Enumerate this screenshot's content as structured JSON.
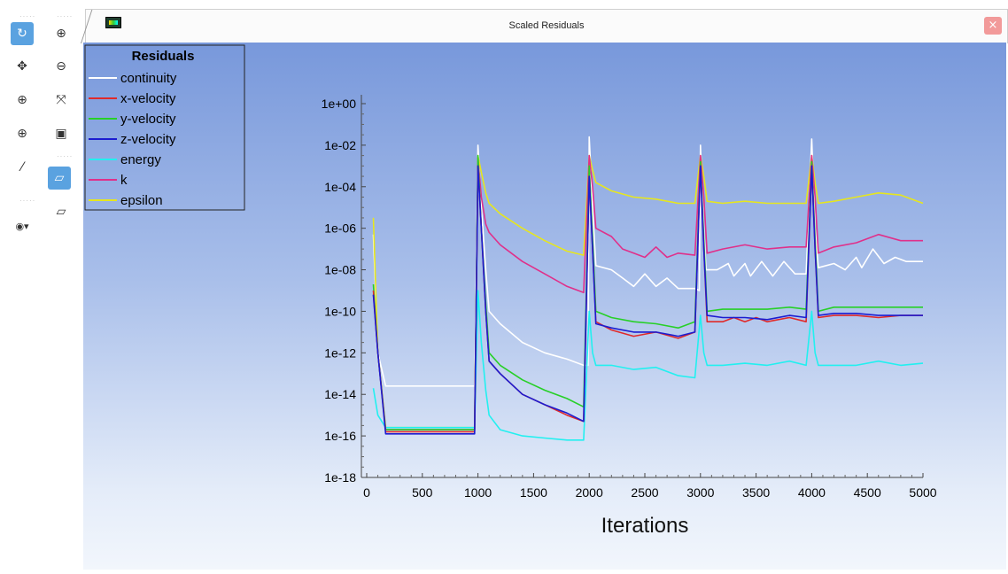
{
  "window": {
    "title": "Scaled Residuals",
    "close_label": "×"
  },
  "toolbar": {
    "items": [
      {
        "name": "rotate-icon",
        "glyph": "↻"
      },
      {
        "name": "zoom-in-icon",
        "glyph": "⊕"
      },
      {
        "name": "pan-icon",
        "glyph": "✥"
      },
      {
        "name": "zoom-out-icon",
        "glyph": "⊖"
      },
      {
        "name": "zoom-box-icon",
        "glyph": "⊕"
      },
      {
        "name": "fit-icon",
        "glyph": "⤧"
      },
      {
        "name": "zoom-region-icon",
        "glyph": "⊕"
      },
      {
        "name": "camera-icon",
        "glyph": "▣"
      },
      {
        "name": "probe-icon",
        "glyph": "⁄"
      },
      {
        "name": "view-3d-icon",
        "glyph": "▱"
      },
      {
        "name": "orthographic-icon",
        "glyph": "▱"
      },
      {
        "name": "view-select-icon",
        "glyph": "◉▾"
      }
    ]
  },
  "chart_data": {
    "type": "line",
    "title": "",
    "xlabel": "Iterations",
    "ylabel": "",
    "xlim": [
      0,
      5000
    ],
    "ylim_log10": [
      -18,
      0
    ],
    "y_scale": "log",
    "xticks": [
      "0",
      "500",
      "1000",
      "1500",
      "2000",
      "2500",
      "3000",
      "3500",
      "4000",
      "4500",
      "5000"
    ],
    "yticks": [
      "1e-18",
      "1e-16",
      "1e-14",
      "1e-12",
      "1e-10",
      "1e-08",
      "1e-06",
      "1e-04",
      "1e-02",
      "1e+00"
    ],
    "legend": {
      "title": "Residuals",
      "placement": "top-left"
    },
    "series": [
      {
        "name": "continuity",
        "color": "#ffffff",
        "points": [
          [
            60,
            -6.3
          ],
          [
            100,
            -12
          ],
          [
            170,
            -13.6
          ],
          [
            970,
            -13.6
          ],
          [
            1000,
            -2
          ],
          [
            1030,
            -5
          ],
          [
            1070,
            -8
          ],
          [
            1100,
            -10
          ],
          [
            1200,
            -10.6
          ],
          [
            1400,
            -11.5
          ],
          [
            1600,
            -12
          ],
          [
            1800,
            -12.3
          ],
          [
            1950,
            -12.6
          ],
          [
            1990,
            -12.6
          ],
          [
            2000,
            -1.6
          ],
          [
            2030,
            -5
          ],
          [
            2060,
            -7.8
          ],
          [
            2200,
            -8
          ],
          [
            2300,
            -8.4
          ],
          [
            2400,
            -8.8
          ],
          [
            2500,
            -8.2
          ],
          [
            2600,
            -8.8
          ],
          [
            2700,
            -8.4
          ],
          [
            2800,
            -8.9
          ],
          [
            2950,
            -8.9
          ],
          [
            2990,
            -9
          ],
          [
            3000,
            -2
          ],
          [
            3030,
            -6
          ],
          [
            3050,
            -8
          ],
          [
            3150,
            -8
          ],
          [
            3250,
            -7.7
          ],
          [
            3300,
            -8.3
          ],
          [
            3400,
            -7.7
          ],
          [
            3450,
            -8.3
          ],
          [
            3550,
            -7.6
          ],
          [
            3650,
            -8.3
          ],
          [
            3750,
            -7.6
          ],
          [
            3850,
            -8.2
          ],
          [
            3950,
            -8.2
          ],
          [
            4000,
            -1.7
          ],
          [
            4030,
            -6
          ],
          [
            4060,
            -7.9
          ],
          [
            4200,
            -7.7
          ],
          [
            4300,
            -8
          ],
          [
            4400,
            -7.4
          ],
          [
            4450,
            -7.9
          ],
          [
            4550,
            -7
          ],
          [
            4650,
            -7.7
          ],
          [
            4750,
            -7.4
          ],
          [
            4850,
            -7.6
          ],
          [
            5000,
            -7.6
          ]
        ]
      },
      {
        "name": "x-velocity",
        "color": "#e02a2a",
        "points": [
          [
            60,
            -9
          ],
          [
            100,
            -12
          ],
          [
            170,
            -15.8
          ],
          [
            970,
            -15.8
          ],
          [
            1000,
            -3
          ],
          [
            1030,
            -6
          ],
          [
            1070,
            -10
          ],
          [
            1100,
            -12.4
          ],
          [
            1200,
            -13
          ],
          [
            1400,
            -14
          ],
          [
            1600,
            -14.5
          ],
          [
            1800,
            -15
          ],
          [
            1950,
            -15.3
          ],
          [
            2000,
            -3.5
          ],
          [
            2030,
            -7
          ],
          [
            2060,
            -10.5
          ],
          [
            2200,
            -10.9
          ],
          [
            2400,
            -11.2
          ],
          [
            2600,
            -11
          ],
          [
            2800,
            -11.3
          ],
          [
            2950,
            -11
          ],
          [
            3000,
            -3
          ],
          [
            3030,
            -7
          ],
          [
            3060,
            -10.5
          ],
          [
            3200,
            -10.5
          ],
          [
            3300,
            -10.3
          ],
          [
            3400,
            -10.5
          ],
          [
            3500,
            -10.3
          ],
          [
            3600,
            -10.5
          ],
          [
            3800,
            -10.3
          ],
          [
            3950,
            -10.5
          ],
          [
            4000,
            -3
          ],
          [
            4030,
            -7
          ],
          [
            4060,
            -10.3
          ],
          [
            4200,
            -10.2
          ],
          [
            4400,
            -10.2
          ],
          [
            4600,
            -10.3
          ],
          [
            4800,
            -10.2
          ],
          [
            5000,
            -10.2
          ]
        ]
      },
      {
        "name": "y-velocity",
        "color": "#27d027",
        "points": [
          [
            60,
            -8.7
          ],
          [
            100,
            -12
          ],
          [
            170,
            -15.7
          ],
          [
            970,
            -15.7
          ],
          [
            1000,
            -2.5
          ],
          [
            1030,
            -6
          ],
          [
            1070,
            -9.6
          ],
          [
            1100,
            -12
          ],
          [
            1200,
            -12.6
          ],
          [
            1400,
            -13.3
          ],
          [
            1600,
            -13.8
          ],
          [
            1800,
            -14.2
          ],
          [
            1950,
            -14.6
          ],
          [
            2000,
            -3
          ],
          [
            2030,
            -6.5
          ],
          [
            2060,
            -10
          ],
          [
            2200,
            -10.3
          ],
          [
            2400,
            -10.5
          ],
          [
            2600,
            -10.6
          ],
          [
            2800,
            -10.8
          ],
          [
            2950,
            -10.5
          ],
          [
            3000,
            -2.8
          ],
          [
            3030,
            -6.5
          ],
          [
            3060,
            -10
          ],
          [
            3200,
            -9.9
          ],
          [
            3400,
            -9.9
          ],
          [
            3600,
            -9.9
          ],
          [
            3800,
            -9.8
          ],
          [
            3950,
            -9.9
          ],
          [
            4000,
            -2.8
          ],
          [
            4030,
            -6.5
          ],
          [
            4060,
            -10
          ],
          [
            4200,
            -9.8
          ],
          [
            4400,
            -9.8
          ],
          [
            4600,
            -9.8
          ],
          [
            4800,
            -9.8
          ],
          [
            5000,
            -9.8
          ]
        ]
      },
      {
        "name": "z-velocity",
        "color": "#1c1cd0",
        "points": [
          [
            60,
            -9.2
          ],
          [
            100,
            -12
          ],
          [
            170,
            -15.9
          ],
          [
            970,
            -15.9
          ],
          [
            1000,
            -3
          ],
          [
            1030,
            -6
          ],
          [
            1070,
            -10
          ],
          [
            1100,
            -12.4
          ],
          [
            1200,
            -13
          ],
          [
            1400,
            -14
          ],
          [
            1600,
            -14.5
          ],
          [
            1800,
            -14.9
          ],
          [
            1950,
            -15.3
          ],
          [
            2000,
            -3.5
          ],
          [
            2030,
            -7
          ],
          [
            2060,
            -10.6
          ],
          [
            2200,
            -10.8
          ],
          [
            2400,
            -11
          ],
          [
            2600,
            -11
          ],
          [
            2800,
            -11.2
          ],
          [
            2950,
            -11
          ],
          [
            3000,
            -3
          ],
          [
            3030,
            -7
          ],
          [
            3060,
            -10.2
          ],
          [
            3200,
            -10.3
          ],
          [
            3400,
            -10.3
          ],
          [
            3600,
            -10.4
          ],
          [
            3800,
            -10.2
          ],
          [
            3950,
            -10.3
          ],
          [
            4000,
            -3
          ],
          [
            4030,
            -7
          ],
          [
            4060,
            -10.2
          ],
          [
            4200,
            -10.1
          ],
          [
            4400,
            -10.1
          ],
          [
            4600,
            -10.2
          ],
          [
            4800,
            -10.2
          ],
          [
            5000,
            -10.2
          ]
        ]
      },
      {
        "name": "energy",
        "color": "#22f0f0",
        "points": [
          [
            60,
            -13.7
          ],
          [
            100,
            -15
          ],
          [
            170,
            -15.6
          ],
          [
            970,
            -15.6
          ],
          [
            1000,
            -9
          ],
          [
            1030,
            -11.5
          ],
          [
            1070,
            -13.8
          ],
          [
            1100,
            -15
          ],
          [
            1200,
            -15.7
          ],
          [
            1400,
            -16
          ],
          [
            1600,
            -16.1
          ],
          [
            1800,
            -16.2
          ],
          [
            1950,
            -16.2
          ],
          [
            2000,
            -10
          ],
          [
            2030,
            -12
          ],
          [
            2060,
            -12.6
          ],
          [
            2200,
            -12.6
          ],
          [
            2400,
            -12.8
          ],
          [
            2600,
            -12.7
          ],
          [
            2800,
            -13.1
          ],
          [
            2950,
            -13.2
          ],
          [
            3000,
            -10.2
          ],
          [
            3030,
            -12
          ],
          [
            3060,
            -12.6
          ],
          [
            3200,
            -12.6
          ],
          [
            3400,
            -12.5
          ],
          [
            3600,
            -12.6
          ],
          [
            3800,
            -12.4
          ],
          [
            3950,
            -12.6
          ],
          [
            4000,
            -10
          ],
          [
            4030,
            -12
          ],
          [
            4060,
            -12.6
          ],
          [
            4200,
            -12.6
          ],
          [
            4400,
            -12.6
          ],
          [
            4600,
            -12.4
          ],
          [
            4800,
            -12.6
          ],
          [
            5000,
            -12.5
          ]
        ]
      },
      {
        "name": "k",
        "color": "#e0308a",
        "points": [
          [
            60,
            -9.2
          ],
          [
            100,
            -12
          ],
          [
            170,
            -15.7
          ],
          [
            970,
            -15.7
          ],
          [
            1000,
            -2.6
          ],
          [
            1030,
            -4.5
          ],
          [
            1070,
            -5.8
          ],
          [
            1100,
            -6.2
          ],
          [
            1200,
            -6.8
          ],
          [
            1400,
            -7.6
          ],
          [
            1600,
            -8.2
          ],
          [
            1800,
            -8.8
          ],
          [
            1950,
            -9.1
          ],
          [
            2000,
            -2.5
          ],
          [
            2030,
            -4
          ],
          [
            2060,
            -6
          ],
          [
            2200,
            -6.4
          ],
          [
            2300,
            -7
          ],
          [
            2400,
            -7.2
          ],
          [
            2500,
            -7.4
          ],
          [
            2600,
            -6.9
          ],
          [
            2700,
            -7.4
          ],
          [
            2800,
            -7.2
          ],
          [
            2950,
            -7.3
          ],
          [
            3000,
            -2.5
          ],
          [
            3030,
            -4.5
          ],
          [
            3060,
            -7.2
          ],
          [
            3200,
            -7
          ],
          [
            3400,
            -6.8
          ],
          [
            3600,
            -7
          ],
          [
            3800,
            -6.9
          ],
          [
            3950,
            -6.9
          ],
          [
            4000,
            -2.5
          ],
          [
            4030,
            -4.5
          ],
          [
            4060,
            -7.2
          ],
          [
            4200,
            -6.9
          ],
          [
            4400,
            -6.7
          ],
          [
            4600,
            -6.3
          ],
          [
            4800,
            -6.6
          ],
          [
            5000,
            -6.6
          ]
        ]
      },
      {
        "name": "epsilon",
        "color": "#e6e61e",
        "points": [
          [
            60,
            -5.5
          ],
          [
            100,
            -12
          ],
          [
            170,
            -15.6
          ],
          [
            970,
            -15.6
          ],
          [
            1000,
            -2.5
          ],
          [
            1030,
            -3.3
          ],
          [
            1070,
            -4.3
          ],
          [
            1100,
            -4.8
          ],
          [
            1200,
            -5.3
          ],
          [
            1400,
            -6
          ],
          [
            1600,
            -6.6
          ],
          [
            1800,
            -7.1
          ],
          [
            1950,
            -7.3
          ],
          [
            2000,
            -2.5
          ],
          [
            2030,
            -3.2
          ],
          [
            2060,
            -3.8
          ],
          [
            2200,
            -4.2
          ],
          [
            2400,
            -4.5
          ],
          [
            2600,
            -4.6
          ],
          [
            2800,
            -4.8
          ],
          [
            2950,
            -4.8
          ],
          [
            3000,
            -2.5
          ],
          [
            3030,
            -3.5
          ],
          [
            3060,
            -4.7
          ],
          [
            3200,
            -4.8
          ],
          [
            3400,
            -4.7
          ],
          [
            3600,
            -4.8
          ],
          [
            3800,
            -4.8
          ],
          [
            3950,
            -4.8
          ],
          [
            4000,
            -2.5
          ],
          [
            4030,
            -3.8
          ],
          [
            4060,
            -4.8
          ],
          [
            4200,
            -4.7
          ],
          [
            4400,
            -4.5
          ],
          [
            4600,
            -4.3
          ],
          [
            4800,
            -4.4
          ],
          [
            5000,
            -4.8
          ]
        ]
      }
    ]
  }
}
